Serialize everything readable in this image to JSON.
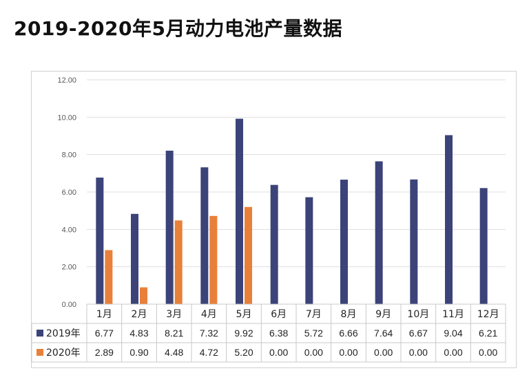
{
  "title": "2019-2020年5月动力电池产量数据",
  "chart_data": {
    "type": "bar",
    "title": "",
    "xlabel": "",
    "ylabel": "",
    "ylim": [
      0,
      12
    ],
    "yticks": [
      "0.00",
      "2.00",
      "4.00",
      "6.00",
      "8.00",
      "10.00",
      "12.00"
    ],
    "grid": true,
    "legend_placement": "data-table-left",
    "categories": [
      "1月",
      "2月",
      "3月",
      "4月",
      "5月",
      "6月",
      "7月",
      "8月",
      "9月",
      "10月",
      "11月",
      "12月"
    ],
    "series": [
      {
        "name": "2019年",
        "color": "#3b4379",
        "values": [
          6.77,
          4.83,
          8.21,
          7.32,
          9.92,
          6.38,
          5.72,
          6.66,
          7.64,
          6.67,
          9.04,
          6.21
        ],
        "labels": [
          "6.77",
          "4.83",
          "8.21",
          "7.32",
          "9.92",
          "6.38",
          "5.72",
          "6.66",
          "7.64",
          "6.67",
          "9.04",
          "6.21"
        ]
      },
      {
        "name": "2020年",
        "color": "#e8803a",
        "values": [
          2.89,
          0.9,
          4.48,
          4.72,
          5.2,
          0.0,
          0.0,
          0.0,
          0.0,
          0.0,
          0.0,
          0.0
        ],
        "labels": [
          "2.89",
          "0.90",
          "4.48",
          "4.72",
          "5.20",
          "0.00",
          "0.00",
          "0.00",
          "0.00",
          "0.00",
          "0.00",
          "0.00"
        ]
      }
    ]
  }
}
